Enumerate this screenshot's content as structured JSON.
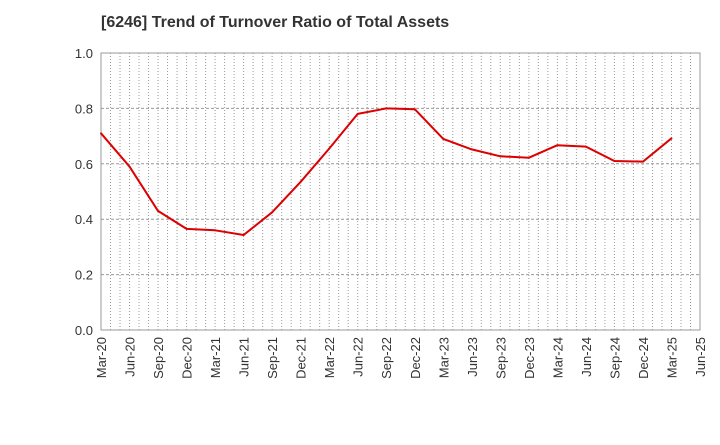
{
  "chart_data": {
    "type": "line",
    "title": "[6246]  Trend of Turnover Ratio of Total Assets",
    "xlabel": "",
    "ylabel": "",
    "ylim": [
      0,
      1.0
    ],
    "y_ticks": [
      "0.0",
      "0.2",
      "0.4",
      "0.6",
      "0.8",
      "1.0"
    ],
    "y_tick_values": [
      0,
      0.2,
      0.4,
      0.6,
      0.8,
      1.0
    ],
    "x_tick_labels": [
      "Mar-20",
      "Jun-20",
      "Sep-20",
      "Dec-20",
      "Mar-21",
      "Jun-21",
      "Sep-21",
      "Dec-21",
      "Mar-22",
      "Jun-22",
      "Sep-22",
      "Dec-22",
      "Mar-23",
      "Jun-23",
      "Sep-23",
      "Dec-23",
      "Mar-24",
      "Jun-24",
      "Sep-24",
      "Dec-24",
      "Mar-25",
      "Jun-25"
    ],
    "grid": true,
    "series": [
      {
        "color": "#dd0000",
        "x": [
          "Mar-20",
          "Jun-20",
          "Sep-20",
          "Dec-20",
          "Mar-21",
          "Jun-21",
          "Sep-21",
          "Dec-21",
          "Mar-22",
          "Jun-22",
          "Sep-22",
          "Dec-22",
          "Mar-23",
          "Jun-23",
          "Sep-23",
          "Dec-23",
          "Mar-24",
          "Jun-24",
          "Sep-24",
          "Dec-24",
          "Mar-25"
        ],
        "values": [
          0.71,
          0.59,
          0.43,
          0.365,
          0.36,
          0.343,
          0.425,
          0.535,
          0.655,
          0.78,
          0.8,
          0.797,
          0.69,
          0.652,
          0.627,
          0.622,
          0.667,
          0.662,
          0.61,
          0.608,
          0.692
        ]
      }
    ]
  }
}
